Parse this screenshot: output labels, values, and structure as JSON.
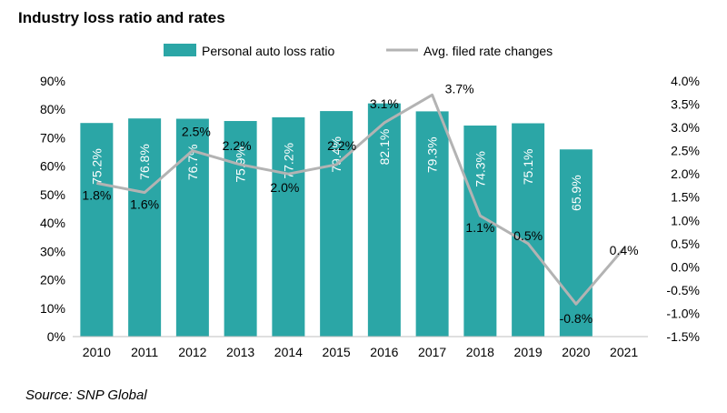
{
  "chart_data": {
    "type": "bar+line",
    "title": "Industry loss ratio and rates",
    "source": "Source: SNP Global",
    "categories": [
      "2010",
      "2011",
      "2012",
      "2013",
      "2014",
      "2015",
      "2016",
      "2017",
      "2018",
      "2019",
      "2020",
      "2021"
    ],
    "series": [
      {
        "name": "Personal auto loss ratio",
        "type": "bar",
        "axis": "left",
        "color": "#2BA6A6",
        "values": [
          75.2,
          76.8,
          76.7,
          75.9,
          77.2,
          79.4,
          82.1,
          79.3,
          74.3,
          75.1,
          65.9,
          null
        ],
        "labels": [
          "75.2%",
          "76.8%",
          "76.7%",
          "75.9%",
          "77.2%",
          "79.4%",
          "82.1%",
          "79.3%",
          "74.3%",
          "75.1%",
          "65.9%",
          ""
        ]
      },
      {
        "name": "Avg. filed rate changes",
        "type": "line",
        "axis": "right",
        "color": "#B3B3B3",
        "values": [
          1.8,
          1.6,
          2.5,
          2.2,
          2.0,
          2.2,
          3.1,
          3.7,
          1.1,
          0.5,
          -0.8,
          0.4
        ],
        "labels": [
          "1.8%",
          "1.6%",
          "2.5%",
          "2.2%",
          "2.0%",
          "2.2%",
          "3.1%",
          "3.7%",
          "1.1%",
          "0.5%",
          "-0.8%",
          "0.4%"
        ]
      }
    ],
    "left_axis": {
      "range": [
        0,
        90
      ],
      "ticks": [
        0,
        10,
        20,
        30,
        40,
        50,
        60,
        70,
        80,
        90
      ],
      "tick_labels": [
        "0%",
        "10%",
        "20%",
        "30%",
        "40%",
        "50%",
        "60%",
        "70%",
        "80%",
        "90%"
      ]
    },
    "right_axis": {
      "range": [
        -1.5,
        4.0
      ],
      "ticks": [
        -1.5,
        -1.0,
        -0.5,
        0.0,
        0.5,
        1.0,
        1.5,
        2.0,
        2.5,
        3.0,
        3.5,
        4.0
      ],
      "tick_labels": [
        "-1.5%",
        "-1.0%",
        "-0.5%",
        "0.0%",
        "0.5%",
        "1.0%",
        "1.5%",
        "2.0%",
        "2.5%",
        "3.0%",
        "3.5%",
        "4.0%"
      ]
    },
    "legend_position": "top-center",
    "grid": false
  }
}
